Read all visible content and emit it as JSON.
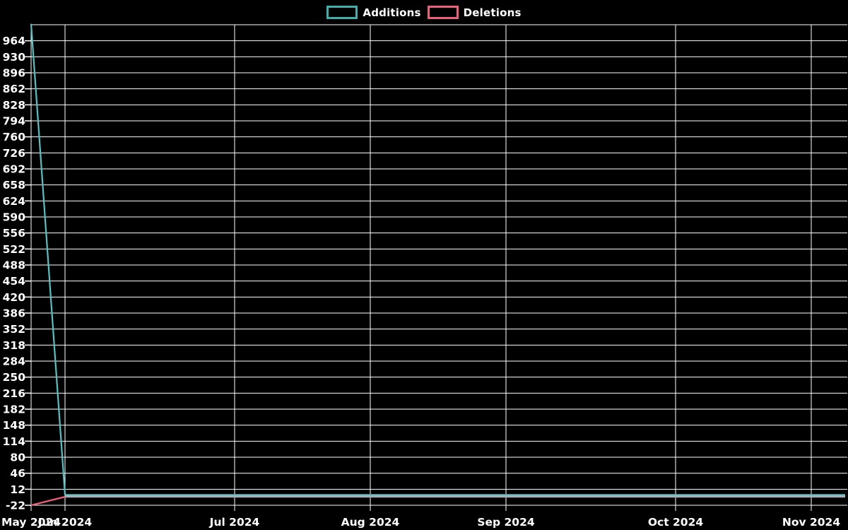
{
  "page": {
    "background_color": "#000000"
  },
  "chart_data": {
    "type": "line",
    "title": "",
    "legend_position": "top-center",
    "background_color": "#000000",
    "grid": true,
    "grid_color": "#ffffff",
    "text_color": "#ffffff",
    "legend": [
      {
        "label": "Additions",
        "color": "#3fafaa"
      },
      {
        "label": "Deletions",
        "color": "#ee5f7b"
      }
    ],
    "x_axis_unit": "weekly data points",
    "n_points": 25,
    "x_ticks": [
      {
        "label": "May 2024",
        "week": 0
      },
      {
        "label": "Jun 2024",
        "week": 1
      },
      {
        "label": "Jul 2024",
        "week": 6
      },
      {
        "label": "Aug 2024",
        "week": 10
      },
      {
        "label": "Sep 2024",
        "week": 14
      },
      {
        "label": "Oct 2024",
        "week": 19
      },
      {
        "label": "Nov 2024",
        "week": 23
      }
    ],
    "y_ticks": [
      964,
      930,
      896,
      862,
      828,
      794,
      760,
      726,
      692,
      658,
      624,
      590,
      556,
      522,
      488,
      454,
      420,
      386,
      352,
      318,
      284,
      250,
      216,
      182,
      148,
      114,
      80,
      46,
      12,
      -22
    ],
    "y_grid_extra": [
      998
    ],
    "y_tick_interval": 34,
    "ylim": [
      -22,
      998
    ],
    "series": [
      {
        "name": "Additions",
        "color": "#52c3c3",
        "values": [
          1000,
          0,
          0,
          0,
          0,
          0,
          0,
          0,
          0,
          0,
          0,
          0,
          0,
          0,
          0,
          0,
          0,
          0,
          0,
          0,
          0,
          0,
          0,
          0,
          0
        ]
      },
      {
        "name": "Deletions",
        "color": "#ee5f7b",
        "values": [
          -22,
          -4,
          -4,
          -4,
          -4,
          -4,
          -4,
          -4,
          -4,
          -4,
          -4,
          -4,
          -4,
          -4,
          -4,
          -4,
          -4,
          -4,
          -4,
          -4,
          -4,
          -4,
          -4,
          -4,
          -4
        ]
      }
    ],
    "overlap_segment": {
      "from_week": 1,
      "to_week": 24,
      "value": -3,
      "color": "#9fb5bc",
      "note": "Flat Additions and Deletions lines overlap and render as one light blue-gray line"
    }
  }
}
